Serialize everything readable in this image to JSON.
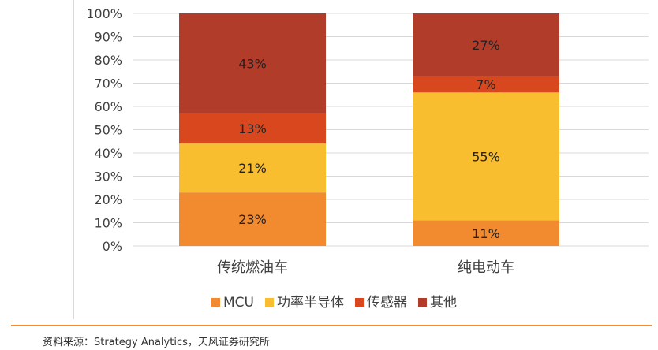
{
  "chart_data": {
    "type": "bar",
    "stacked": true,
    "categories": [
      "传统燃油车",
      "纯电动车"
    ],
    "series": [
      {
        "name": "MCU",
        "color": "#F28A30",
        "values": [
          23,
          11
        ]
      },
      {
        "name": "功率半导体",
        "color": "#F9BE30",
        "values": [
          21,
          55
        ]
      },
      {
        "name": "传感器",
        "color": "#D9471E",
        "values": [
          13,
          7
        ]
      },
      {
        "name": "其他",
        "color": "#B23C2A",
        "values": [
          43,
          27
        ]
      }
    ],
    "yticks": [
      "0%",
      "10%",
      "20%",
      "30%",
      "40%",
      "50%",
      "60%",
      "70%",
      "80%",
      "90%",
      "100%"
    ],
    "ylim": [
      0,
      100
    ],
    "grid": true,
    "legend_position": "bottom"
  },
  "source_text": "资料来源：Strategy Analytics，天风证券研究所",
  "colors": {
    "rule": "#F28A30",
    "grid": "#d9d9d9",
    "text": "#404040"
  }
}
